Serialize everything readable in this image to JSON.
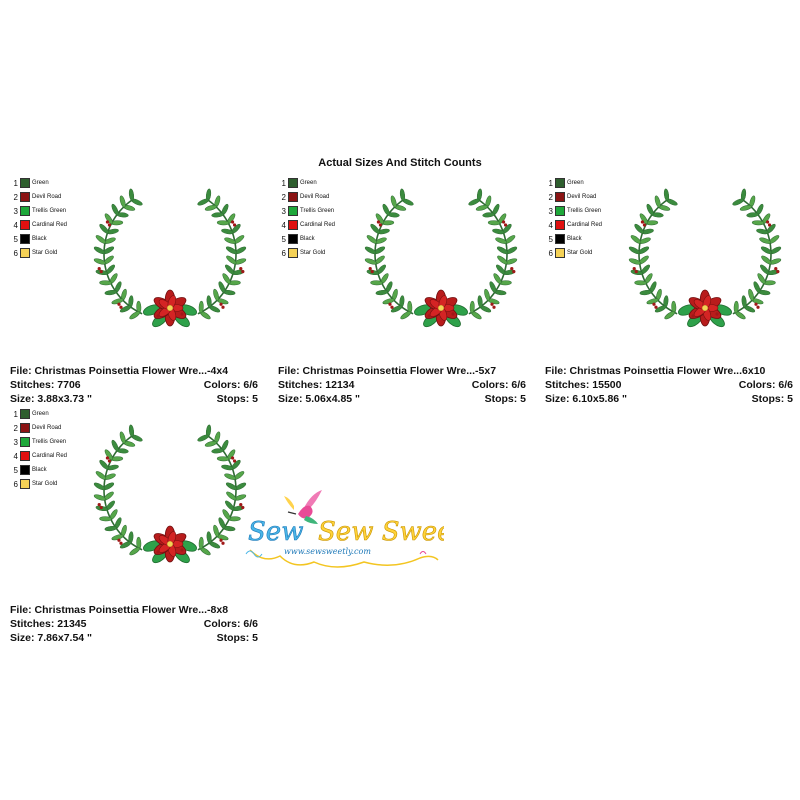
{
  "page_title": "Actual Sizes And Stitch Counts",
  "palette": [
    {
      "num": "1",
      "name": "Green",
      "color": "#2e5e2e"
    },
    {
      "num": "2",
      "name": "Devil Road",
      "color": "#8b1414"
    },
    {
      "num": "3",
      "name": "Trellis Green",
      "color": "#1ea83a"
    },
    {
      "num": "4",
      "name": "Cardinal Red",
      "color": "#e01010"
    },
    {
      "num": "5",
      "name": "Black",
      "color": "#000000"
    },
    {
      "num": "6",
      "name": "Star Gold",
      "color": "#f5d257"
    }
  ],
  "designs": [
    {
      "file": "File: Christmas Poinsettia Flower Wre...-4x4",
      "stitches": "Stitches: 7706",
      "colors": "Colors: 6/6",
      "size": "Size: 3.88x3.73 \"",
      "stops": "Stops: 5"
    },
    {
      "file": "File: Christmas Poinsettia Flower Wre...-5x7",
      "stitches": "Stitches: 12134",
      "colors": "Colors: 6/6",
      "size": "Size: 5.06x4.85 \"",
      "stops": "Stops: 5"
    },
    {
      "file": "File: Christmas Poinsettia Flower Wre...6x10",
      "stitches": "Stitches: 15500",
      "colors": "Colors: 6/6",
      "size": "Size: 6.10x5.86 \"",
      "stops": "Stops: 5"
    },
    {
      "file": "File: Christmas Poinsettia Flower Wre...-8x8",
      "stitches": "Stitches: 21345",
      "colors": "Colors: 6/6",
      "size": "Size: 7.86x7.54 \"",
      "stops": "Stops: 5"
    }
  ],
  "logo": {
    "text": "Sew Sweetly",
    "url": "www.sewsweetly.com"
  }
}
